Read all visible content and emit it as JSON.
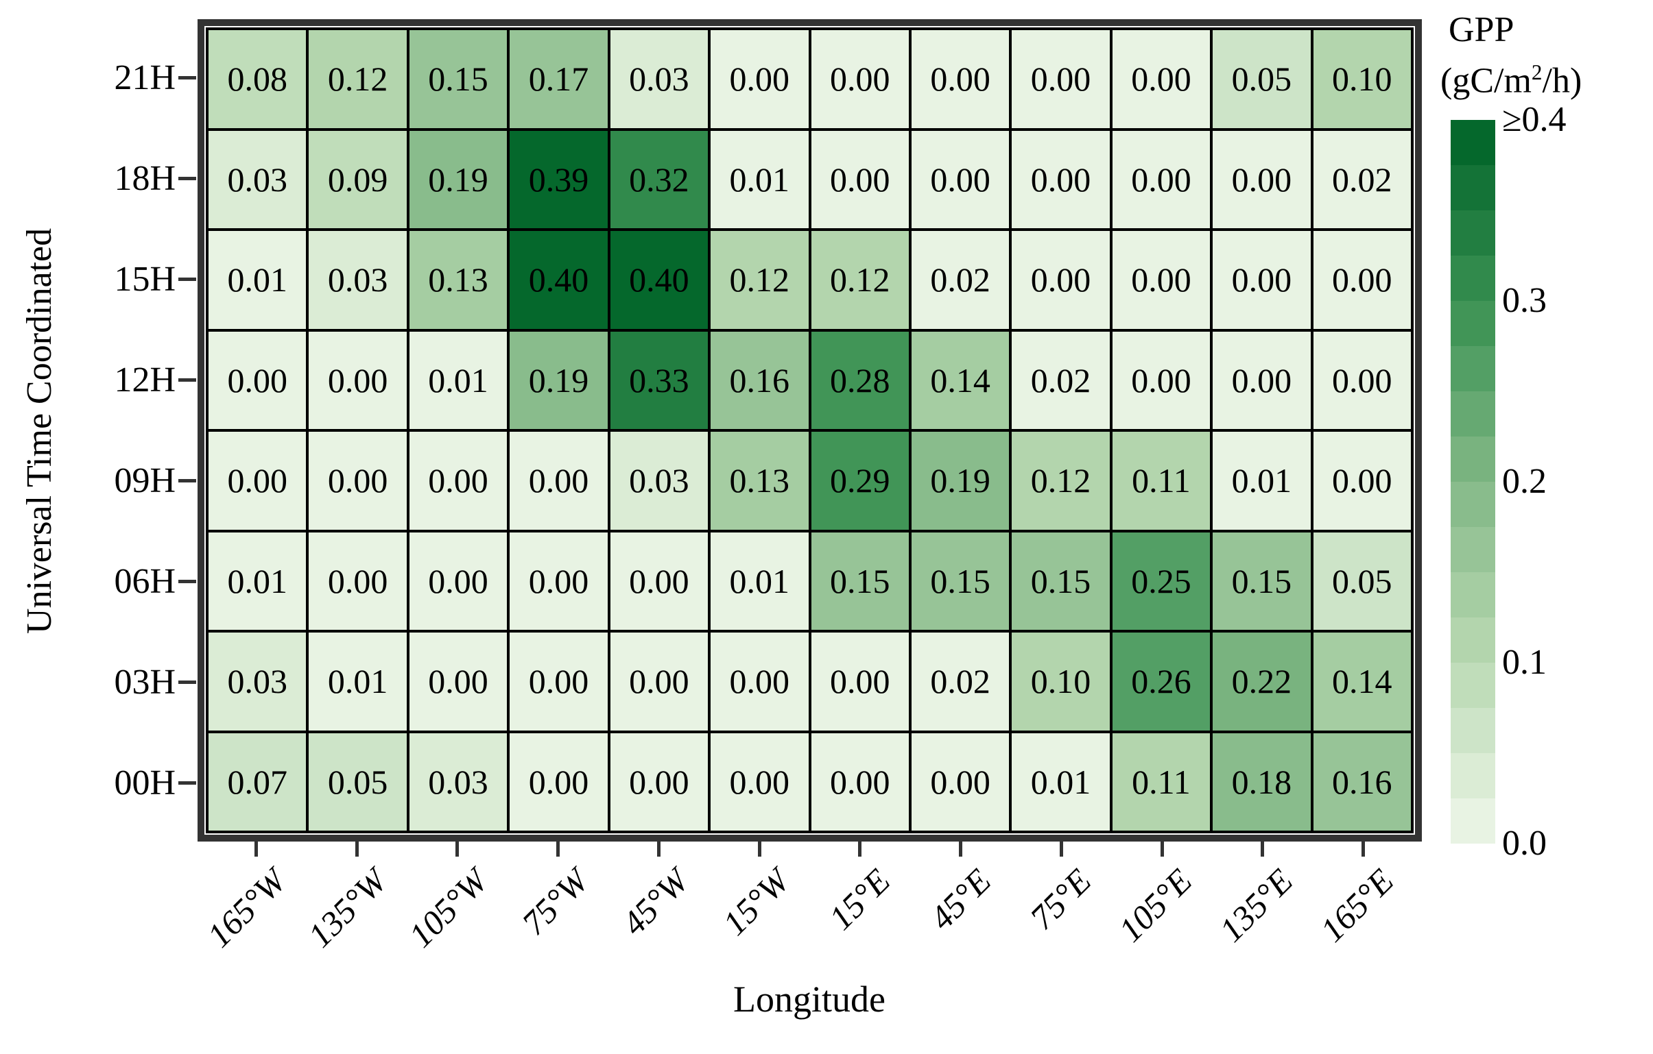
{
  "chart_data": {
    "type": "heatmap",
    "xlabel": "Longitude",
    "ylabel": "Universal Time Coordinated",
    "x_categories": [
      "165°W",
      "135°W",
      "105°W",
      "75°W",
      "45°W",
      "15°W",
      "15°E",
      "45°E",
      "75°E",
      "105°E",
      "135°E",
      "165°E"
    ],
    "y_categories": [
      "21H",
      "18H",
      "15H",
      "12H",
      "09H",
      "06H",
      "03H",
      "00H"
    ],
    "values_by_row": [
      [
        0.08,
        0.12,
        0.15,
        0.17,
        0.03,
        0.0,
        0.0,
        0.0,
        0.0,
        0.0,
        0.05,
        0.1
      ],
      [
        0.03,
        0.09,
        0.19,
        0.39,
        0.32,
        0.01,
        0.0,
        0.0,
        0.0,
        0.0,
        0.0,
        0.02
      ],
      [
        0.01,
        0.03,
        0.13,
        0.4,
        0.4,
        0.12,
        0.12,
        0.02,
        0.0,
        0.0,
        0.0,
        0.0
      ],
      [
        0.0,
        0.0,
        0.01,
        0.19,
        0.33,
        0.16,
        0.28,
        0.14,
        0.02,
        0.0,
        0.0,
        0.0
      ],
      [
        0.0,
        0.0,
        0.0,
        0.0,
        0.03,
        0.13,
        0.29,
        0.19,
        0.12,
        0.11,
        0.01,
        0.0
      ],
      [
        0.01,
        0.0,
        0.0,
        0.0,
        0.0,
        0.01,
        0.15,
        0.15,
        0.15,
        0.25,
        0.15,
        0.05
      ],
      [
        0.03,
        0.01,
        0.0,
        0.0,
        0.0,
        0.0,
        0.0,
        0.02,
        0.1,
        0.26,
        0.22,
        0.14
      ],
      [
        0.07,
        0.05,
        0.03,
        0.0,
        0.0,
        0.0,
        0.0,
        0.0,
        0.01,
        0.11,
        0.18,
        0.16
      ]
    ],
    "value_decimals": 2,
    "value_range": [
      0.0,
      0.4
    ],
    "grid_lines": "black cell borders",
    "colorbar": {
      "title_line1": "GPP",
      "units_pre": "(gC/m",
      "units_sup": "2",
      "units_post": "/h)",
      "tick_labels": [
        "≥0.4",
        "0.3",
        "0.2",
        "0.1",
        "0.0"
      ],
      "steps": 16,
      "step_value": 0.025,
      "orientation": "vertical, dark on top",
      "colors_light_to_dark": [
        "#e8f3e3",
        "#b6d7b0",
        "#82b886",
        "#3c9254",
        "#05682c"
      ]
    },
    "frame_color": "#333333",
    "cell_border_color": "#000000",
    "text_color": "#000000"
  }
}
